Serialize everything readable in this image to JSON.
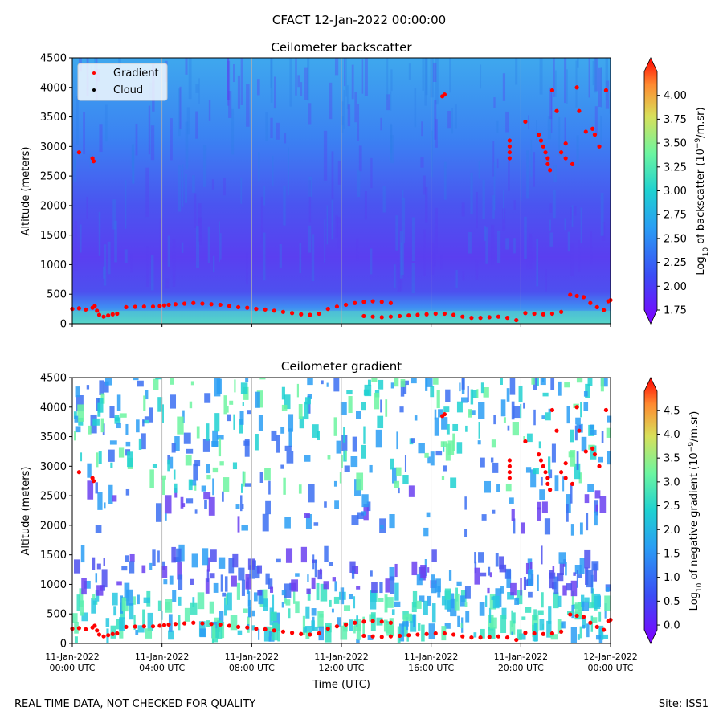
{
  "figure_title": "CFACT 12-Jan-2022 00:00:00",
  "footer_left": "REAL TIME DATA, NOT CHECKED FOR QUALITY",
  "footer_right": "Site: ISS1",
  "colors": {
    "gradient_marker": "#ff0000",
    "cloud_marker": "#000000",
    "gridline": "#b0b0b0"
  },
  "chart_data": [
    {
      "type": "heatmap",
      "title": "Ceilometer backscatter",
      "xlabel": "",
      "ylabel": "Altitude (meters)",
      "ylim": [
        0,
        4500
      ],
      "yticks": [
        "0",
        "500",
        "1000",
        "1500",
        "2000",
        "2500",
        "3000",
        "3500",
        "4000",
        "4500"
      ],
      "xlim_hours": [
        0,
        24
      ],
      "xticks_hours": [
        0,
        4,
        8,
        12,
        16,
        20,
        24
      ],
      "grid": "vertical",
      "legend": {
        "position": "top-left",
        "entries": [
          "Gradient",
          "Cloud"
        ]
      },
      "colorbar": {
        "label_prefix": "Log",
        "label_sub": "10",
        "label_mid": " of backscatter (10",
        "label_sup": "−9",
        "label_suffix": "/m.sr)",
        "min": 1.75,
        "max": 4.25,
        "ticks": [
          "1.75",
          "2.00",
          "2.25",
          "2.50",
          "2.75",
          "3.00",
          "3.25",
          "3.50",
          "3.75",
          "4.00"
        ]
      }
    },
    {
      "type": "heatmap",
      "title": "Ceilometer gradient",
      "xlabel": "Time (UTC)",
      "ylabel": "Altitude (meters)",
      "ylim": [
        0,
        4500
      ],
      "yticks": [
        "0",
        "500",
        "1000",
        "1500",
        "2000",
        "2500",
        "3000",
        "3500",
        "4000",
        "4500"
      ],
      "xlim_hours": [
        0,
        24
      ],
      "xticks_hours": [
        0,
        4,
        8,
        12,
        16,
        20,
        24
      ],
      "xtick_labels": [
        [
          "11-Jan-2022",
          "00:00 UTC"
        ],
        [
          "11-Jan-2022",
          "04:00 UTC"
        ],
        [
          "11-Jan-2022",
          "08:00 UTC"
        ],
        [
          "11-Jan-2022",
          "12:00 UTC"
        ],
        [
          "11-Jan-2022",
          "16:00 UTC"
        ],
        [
          "11-Jan-2022",
          "20:00 UTC"
        ],
        [
          "12-Jan-2022",
          "00:00 UTC"
        ]
      ],
      "grid": "vertical",
      "colorbar": {
        "label_prefix": "Log",
        "label_sub": "10",
        "label_mid": " of negative gradient (10",
        "label_sup": "−9",
        "label_suffix": "/m.sr)",
        "min": -0.1,
        "max": 4.9,
        "ticks": [
          "0.0",
          "0.5",
          "1.0",
          "1.5",
          "2.0",
          "2.5",
          "3.0",
          "3.5",
          "4.0",
          "4.5"
        ]
      }
    }
  ],
  "gradient_points": {
    "boundary_layer": [
      [
        0.0,
        250
      ],
      [
        0.3,
        260
      ],
      [
        0.6,
        240
      ],
      [
        0.9,
        270
      ],
      [
        1.0,
        300
      ],
      [
        1.1,
        220
      ],
      [
        1.2,
        150
      ],
      [
        1.4,
        120
      ],
      [
        1.6,
        140
      ],
      [
        1.8,
        160
      ],
      [
        2.0,
        170
      ],
      [
        2.4,
        280
      ],
      [
        2.8,
        285
      ],
      [
        3.2,
        290
      ],
      [
        3.6,
        290
      ],
      [
        3.9,
        300
      ],
      [
        4.1,
        310
      ],
      [
        4.3,
        320
      ],
      [
        4.6,
        330
      ],
      [
        5.0,
        340
      ],
      [
        5.4,
        350
      ],
      [
        5.8,
        340
      ],
      [
        6.2,
        330
      ],
      [
        6.6,
        320
      ],
      [
        7.0,
        300
      ],
      [
        7.4,
        280
      ],
      [
        7.8,
        270
      ],
      [
        8.2,
        250
      ],
      [
        8.6,
        240
      ],
      [
        9.0,
        220
      ],
      [
        9.4,
        200
      ],
      [
        9.8,
        180
      ],
      [
        10.2,
        160
      ],
      [
        10.6,
        150
      ],
      [
        11.0,
        170
      ],
      [
        11.4,
        250
      ],
      [
        11.8,
        290
      ],
      [
        12.2,
        320
      ],
      [
        12.6,
        350
      ],
      [
        13.0,
        370
      ],
      [
        13.4,
        380
      ],
      [
        13.8,
        370
      ],
      [
        14.2,
        350
      ],
      [
        13.0,
        130
      ],
      [
        13.4,
        120
      ],
      [
        13.8,
        110
      ],
      [
        14.2,
        120
      ],
      [
        14.6,
        130
      ],
      [
        15.0,
        140
      ],
      [
        15.4,
        150
      ],
      [
        15.8,
        160
      ],
      [
        16.2,
        170
      ],
      [
        16.6,
        170
      ],
      [
        17.0,
        150
      ],
      [
        17.4,
        120
      ],
      [
        17.8,
        100
      ],
      [
        18.2,
        100
      ],
      [
        18.6,
        110
      ],
      [
        19.0,
        120
      ],
      [
        19.4,
        100
      ],
      [
        19.8,
        60
      ],
      [
        20.2,
        180
      ],
      [
        20.6,
        170
      ],
      [
        21.0,
        160
      ],
      [
        21.4,
        170
      ],
      [
        21.8,
        200
      ],
      [
        22.2,
        490
      ],
      [
        22.5,
        470
      ],
      [
        22.8,
        450
      ],
      [
        23.1,
        350
      ],
      [
        23.4,
        280
      ],
      [
        23.7,
        230
      ],
      [
        23.9,
        380
      ],
      [
        24.0,
        400
      ]
    ],
    "clouds_aloft": [
      [
        0.3,
        2900
      ],
      [
        0.9,
        2800
      ],
      [
        0.95,
        2750
      ],
      [
        16.5,
        3850
      ],
      [
        16.6,
        3880
      ],
      [
        19.5,
        3100
      ],
      [
        19.5,
        3000
      ],
      [
        19.5,
        2900
      ],
      [
        19.5,
        2800
      ],
      [
        20.2,
        3420
      ],
      [
        20.8,
        3200
      ],
      [
        20.9,
        3100
      ],
      [
        21.0,
        3000
      ],
      [
        21.1,
        2900
      ],
      [
        21.2,
        2800
      ],
      [
        21.2,
        2700
      ],
      [
        21.3,
        2600
      ],
      [
        21.4,
        3950
      ],
      [
        21.6,
        3600
      ],
      [
        21.8,
        2900
      ],
      [
        22.0,
        3050
      ],
      [
        22.0,
        2800
      ],
      [
        22.3,
        2700
      ],
      [
        22.5,
        4000
      ],
      [
        22.6,
        3600
      ],
      [
        22.9,
        3250
      ],
      [
        23.2,
        3300
      ],
      [
        23.3,
        3200
      ],
      [
        23.5,
        3000
      ],
      [
        23.8,
        3950
      ]
    ]
  }
}
